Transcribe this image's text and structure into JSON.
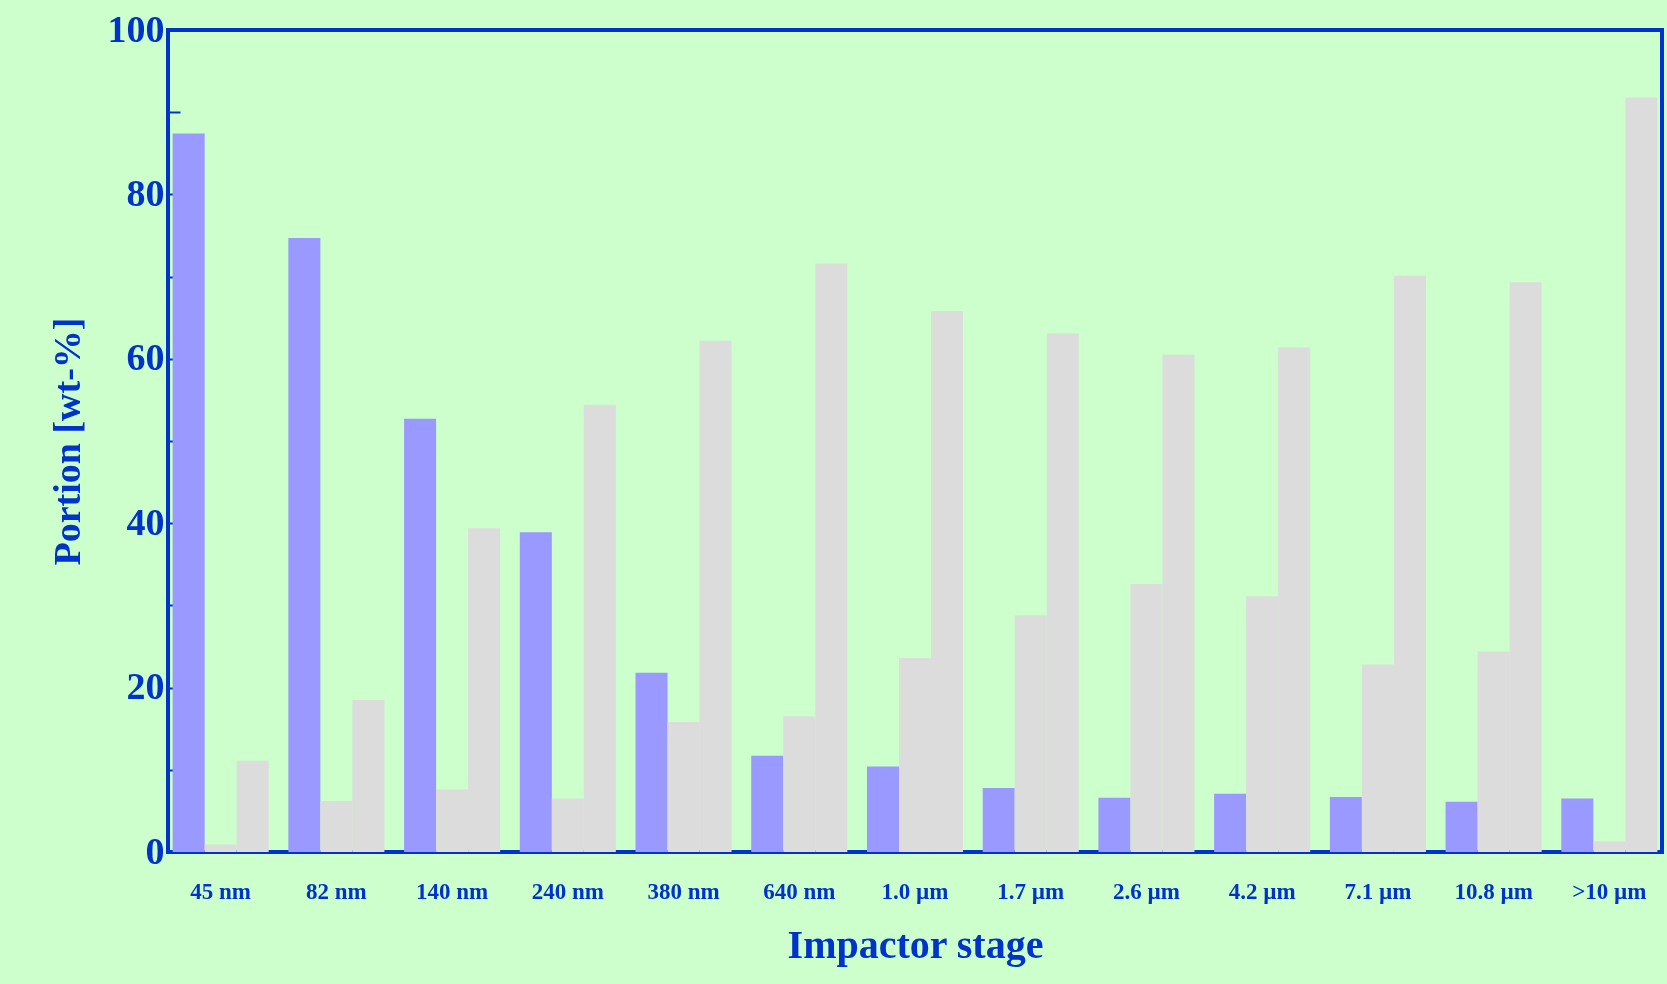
{
  "chart_data": {
    "type": "bar",
    "xlabel": "Impactor stage",
    "ylabel": "Portion [wt-%]",
    "categories": [
      "45 nm",
      "82 nm",
      "140 nm",
      "240 nm",
      "380 nm",
      "640 nm",
      "1.0 µm",
      "1.7 µm",
      "2.6 µm",
      "4.2 µm",
      "7.1 µm",
      "10.8 µm",
      ">10 µm"
    ],
    "series": [
      {
        "color": "#9999ff",
        "values": [
          87.4,
          74.7,
          52.7,
          38.9,
          21.8,
          11.7,
          10.4,
          7.8,
          6.6,
          7.1,
          6.7,
          6.1,
          6.5
        ]
      },
      {
        "color": "#dcdcdc",
        "values": [
          0.9,
          6.2,
          7.6,
          6.5,
          15.8,
          16.5,
          23.6,
          28.8,
          32.6,
          31.1,
          22.8,
          24.4,
          1.3
        ]
      },
      {
        "color": "#dcdcdc",
        "values": [
          11.1,
          18.5,
          39.4,
          54.4,
          62.2,
          71.6,
          65.8,
          63.1,
          60.5,
          61.4,
          70.1,
          69.3,
          91.8
        ]
      }
    ],
    "ylim": [
      0,
      100
    ],
    "yticks": [
      0,
      {
        "value": 10,
        "label": null
      },
      20,
      {
        "value": 30,
        "label": null
      },
      40,
      {
        "value": 50,
        "label": null
      },
      60,
      {
        "value": 70,
        "label": null
      },
      80,
      {
        "value": 90,
        "label": null
      },
      100
    ],
    "grid": false,
    "legend": false
  }
}
